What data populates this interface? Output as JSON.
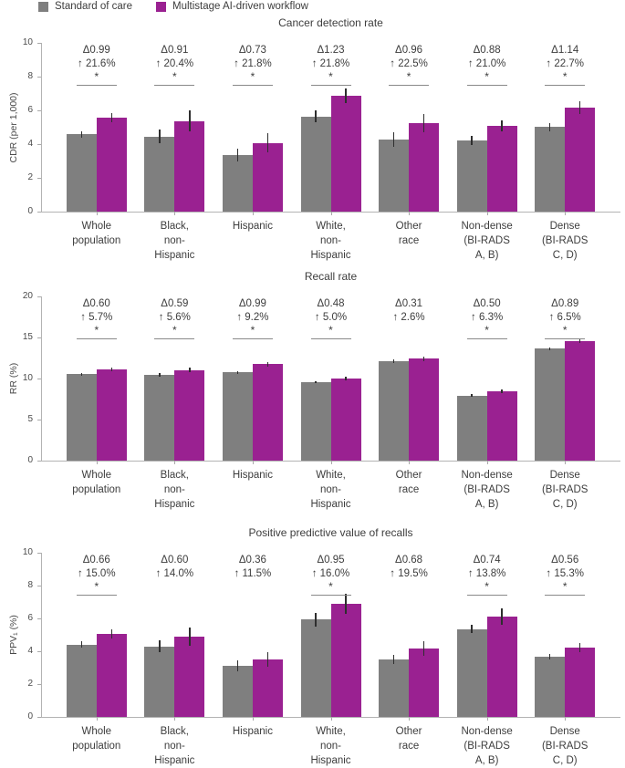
{
  "legend": {
    "items": [
      {
        "label": "Standard of care",
        "color": "#7f7f7f"
      },
      {
        "label": "Multistage AI-driven workflow",
        "color": "#9a2191"
      }
    ]
  },
  "categories": [
    "Whole\npopulation",
    "Black,\nnon-\nHispanic",
    "Hispanic",
    "White,\nnon-\nHispanic",
    "Other\nrace",
    "Non-dense\n(BI-RADS\nA, B)",
    "Dense\n(BI-RADS\nC, D)"
  ],
  "colors": {
    "standard": "#7f7f7f",
    "ai": "#9a2191",
    "axis": "#b3b3b3",
    "errorbar": "#2e2e2e",
    "text": "#3d3d3d"
  },
  "chart_data": [
    {
      "type": "bar",
      "title": "Cancer detection rate",
      "ylabel": "CDR (per 1,000)",
      "ylim": [
        0,
        10
      ],
      "yticks": [
        0,
        2,
        4,
        6,
        8,
        10
      ],
      "categories_ref": "categories",
      "legend_position": "top-left",
      "grid": false,
      "series": [
        {
          "name": "Standard of care",
          "color": "#7f7f7f",
          "values": [
            4.58,
            4.45,
            3.35,
            5.64,
            4.27,
            4.19,
            5.02
          ],
          "errors": [
            0.18,
            0.4,
            0.38,
            0.35,
            0.45,
            0.27,
            0.25
          ]
        },
        {
          "name": "Multistage AI-driven workflow",
          "color": "#9a2191",
          "values": [
            5.57,
            5.36,
            4.08,
            6.87,
            5.23,
            5.07,
            6.16
          ],
          "errors": [
            0.28,
            0.62,
            0.55,
            0.45,
            0.55,
            0.33,
            0.4
          ]
        }
      ],
      "annotations": [
        {
          "delta": "Δ0.99",
          "pct": "↑ 21.6%",
          "sig": true
        },
        {
          "delta": "Δ0.91",
          "pct": "↑ 20.4%",
          "sig": true
        },
        {
          "delta": "Δ0.73",
          "pct": "↑ 21.8%",
          "sig": true
        },
        {
          "delta": "Δ1.23",
          "pct": "↑ 21.8%",
          "sig": true
        },
        {
          "delta": "Δ0.96",
          "pct": "↑ 22.5%",
          "sig": true
        },
        {
          "delta": "Δ0.88",
          "pct": "↑ 21.0%",
          "sig": true
        },
        {
          "delta": "Δ1.14",
          "pct": "↑ 22.7%",
          "sig": true
        }
      ]
    },
    {
      "type": "bar",
      "title": "Recall rate",
      "ylabel": "RR (%)",
      "ylim": [
        0,
        20
      ],
      "yticks": [
        0,
        5,
        10,
        15,
        20
      ],
      "categories_ref": "categories",
      "grid": false,
      "series": [
        {
          "name": "Standard of care",
          "color": "#7f7f7f",
          "values": [
            10.53,
            10.45,
            10.76,
            9.55,
            12.09,
            7.94,
            13.65
          ],
          "errors": [
            0.15,
            0.2,
            0.18,
            0.15,
            0.2,
            0.15,
            0.18
          ]
        },
        {
          "name": "Multistage AI-driven workflow",
          "color": "#9a2191",
          "values": [
            11.13,
            11.04,
            11.75,
            10.03,
            12.4,
            8.44,
            14.54
          ],
          "errors": [
            0.2,
            0.25,
            0.25,
            0.2,
            0.25,
            0.2,
            0.2
          ]
        }
      ],
      "annotations": [
        {
          "delta": "Δ0.60",
          "pct": "↑ 5.7%",
          "sig": true
        },
        {
          "delta": "Δ0.59",
          "pct": "↑ 5.6%",
          "sig": true
        },
        {
          "delta": "Δ0.99",
          "pct": "↑ 9.2%",
          "sig": true
        },
        {
          "delta": "Δ0.48",
          "pct": "↑ 5.0%",
          "sig": true
        },
        {
          "delta": "Δ0.31",
          "pct": "↑ 2.6%",
          "sig": false
        },
        {
          "delta": "Δ0.50",
          "pct": "↑ 6.3%",
          "sig": true
        },
        {
          "delta": "Δ0.89",
          "pct": "↑ 6.5%",
          "sig": true
        }
      ]
    },
    {
      "type": "bar",
      "title": "Positive predictive value of recalls",
      "ylabel": "PPV₁ (%)",
      "ylim": [
        0,
        10
      ],
      "yticks": [
        0,
        2,
        4,
        6,
        8,
        10
      ],
      "categories_ref": "categories",
      "grid": false,
      "series": [
        {
          "name": "Standard of care",
          "color": "#7f7f7f",
          "values": [
            4.4,
            4.29,
            3.13,
            5.94,
            3.49,
            5.36,
            3.66
          ],
          "errors": [
            0.2,
            0.35,
            0.33,
            0.42,
            0.28,
            0.25,
            0.18
          ]
        },
        {
          "name": "Multistage AI-driven workflow",
          "color": "#9a2191",
          "values": [
            5.06,
            4.89,
            3.49,
            6.89,
            4.17,
            6.1,
            4.22
          ],
          "errors": [
            0.3,
            0.55,
            0.45,
            0.62,
            0.45,
            0.5,
            0.28
          ]
        }
      ],
      "annotations": [
        {
          "delta": "Δ0.66",
          "pct": "↑ 15.0%",
          "sig": true
        },
        {
          "delta": "Δ0.60",
          "pct": "↑ 14.0%",
          "sig": false
        },
        {
          "delta": "Δ0.36",
          "pct": "↑ 11.5%",
          "sig": false
        },
        {
          "delta": "Δ0.95",
          "pct": "↑ 16.0%",
          "sig": true
        },
        {
          "delta": "Δ0.68",
          "pct": "↑ 19.5%",
          "sig": false
        },
        {
          "delta": "Δ0.74",
          "pct": "↑ 13.8%",
          "sig": true
        },
        {
          "delta": "Δ0.56",
          "pct": "↑ 15.3%",
          "sig": true
        }
      ]
    }
  ]
}
